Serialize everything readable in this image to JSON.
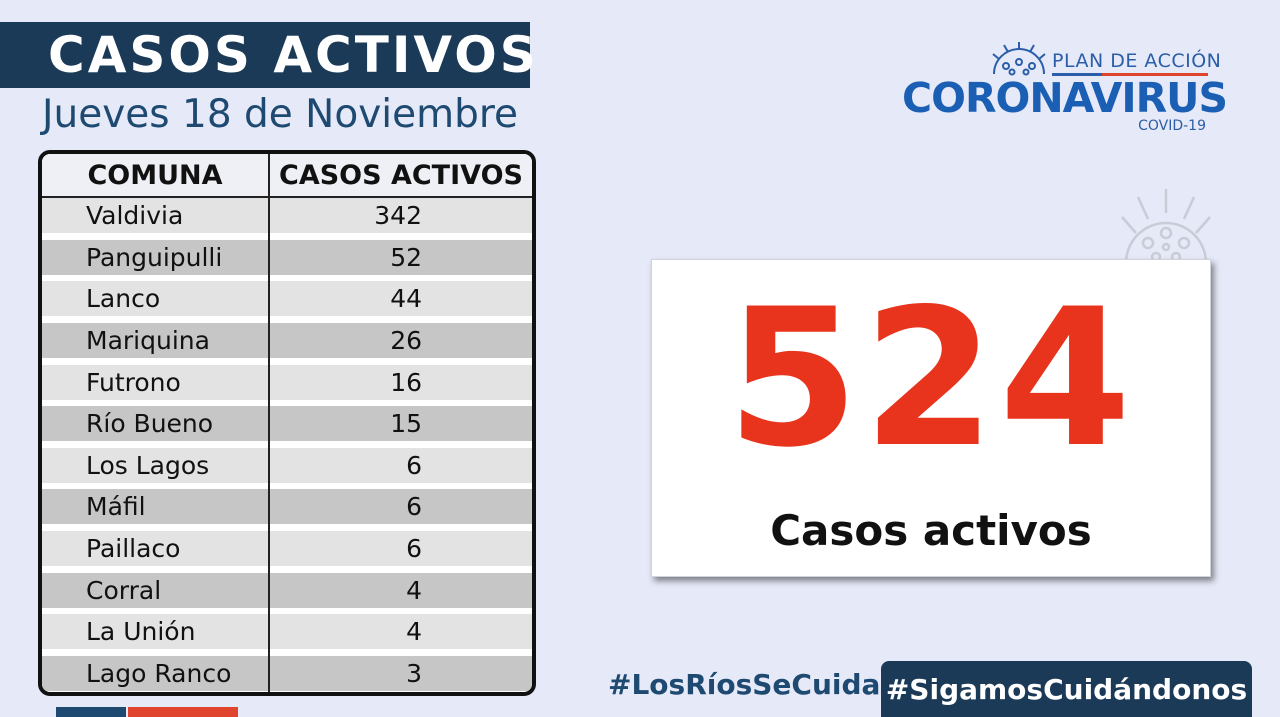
{
  "header": {
    "title": "CASOS ACTIVOS",
    "subtitle": "Jueves 18 de Noviembre"
  },
  "table": {
    "columns": [
      "COMUNA",
      "CASOS ACTIVOS"
    ],
    "rows": [
      {
        "comuna": "Valdivia",
        "casos": "342"
      },
      {
        "comuna": "Panguipulli",
        "casos": "52"
      },
      {
        "comuna": "Lanco",
        "casos": "44"
      },
      {
        "comuna": "Mariquina",
        "casos": "26"
      },
      {
        "comuna": "Futrono",
        "casos": "16"
      },
      {
        "comuna": "Río Bueno",
        "casos": "15"
      },
      {
        "comuna": "Los Lagos",
        "casos": "6"
      },
      {
        "comuna": "Máfil",
        "casos": "6"
      },
      {
        "comuna": "Paillaco",
        "casos": "6"
      },
      {
        "comuna": "Corral",
        "casos": "4"
      },
      {
        "comuna": "La Unión",
        "casos": "4"
      },
      {
        "comuna": "Lago Ranco",
        "casos": "3"
      }
    ]
  },
  "logo": {
    "top": "PLAN DE ACCIÓN",
    "main": "CORONAVIRUS",
    "sub": "COVID-19",
    "icon": "virus-icon"
  },
  "total": {
    "value": "524",
    "label": "Casos activos"
  },
  "hashtags": {
    "left": "#LosRíosSeCuida",
    "right": "#SigamosCuidándonos"
  },
  "colors": {
    "navy": "#1b3a57",
    "brand_blue": "#1a5fb4",
    "red": "#e8341c",
    "background": "#e6e9f7"
  }
}
